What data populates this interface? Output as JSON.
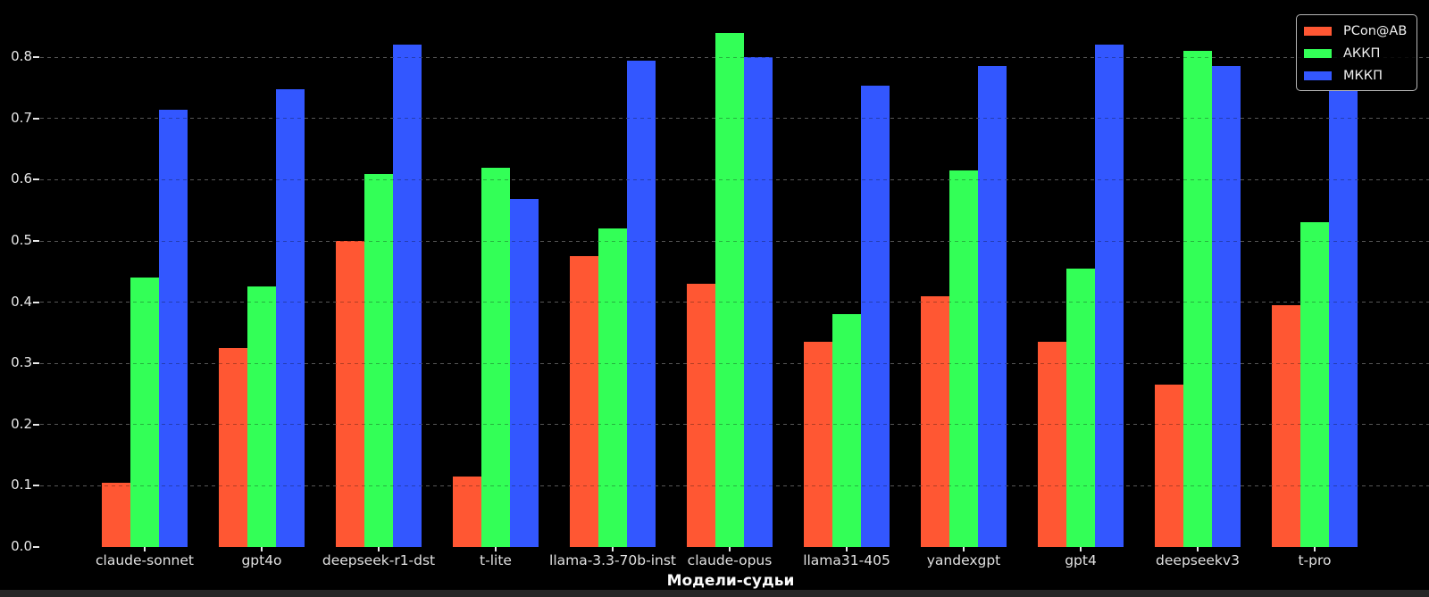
{
  "chart_data": {
    "type": "bar",
    "title": "",
    "xlabel": "Модели-судьи",
    "ylabel": "",
    "categories": [
      "claude-sonnet",
      "gpt4o",
      "deepseek-r1-dst",
      "t-lite",
      "llama-3.3-70b-inst",
      "claude-opus",
      "llama31-405",
      "yandexgpt",
      "gpt4",
      "deepseekv3",
      "t-pro"
    ],
    "series": [
      {
        "name": "PCon@AB",
        "color": "#ff5733",
        "values": [
          0.105,
          0.325,
          0.5,
          0.115,
          0.475,
          0.43,
          0.335,
          0.41,
          0.335,
          0.265,
          0.395
        ]
      },
      {
        "name": "АККП",
        "color": "#33ff57",
        "values": [
          0.44,
          0.425,
          0.61,
          0.62,
          0.52,
          0.84,
          0.38,
          0.615,
          0.455,
          0.81,
          0.53
        ]
      },
      {
        "name": "МККП",
        "color": "#3357ff",
        "values": [
          0.715,
          0.748,
          0.82,
          0.568,
          0.795,
          0.8,
          0.753,
          0.785,
          0.82,
          0.785,
          0.746
        ]
      }
    ],
    "yticks": [
      "0.0",
      "0.1",
      "0.2",
      "0.3",
      "0.4",
      "0.5",
      "0.6",
      "0.7",
      "0.8"
    ],
    "ylim": [
      0,
      0.89
    ],
    "grid": true,
    "grid_style": "dashed",
    "legend_position": "upper right",
    "background_color": "#000000",
    "text_color": "#e8e8e8"
  }
}
